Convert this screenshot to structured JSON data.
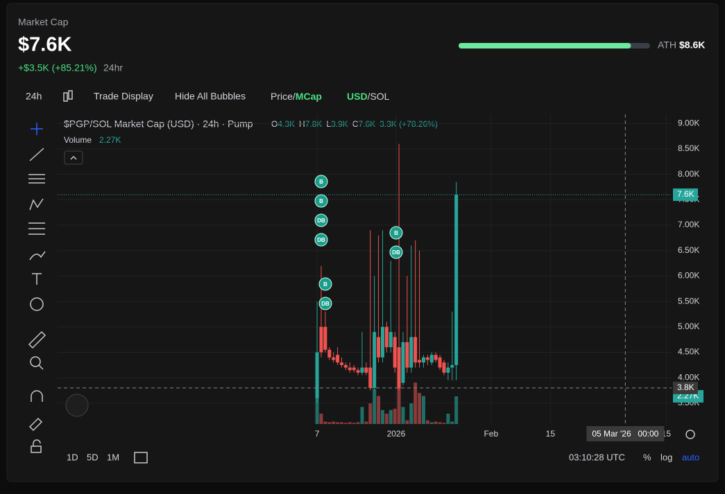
{
  "header": {
    "title": "Market Cap",
    "value": "$7.6K",
    "change": "+$3.5K (+85.21%)",
    "period": "24hr",
    "ath_label": "ATH",
    "ath_value": "$8.6K",
    "ath_progress": 90
  },
  "toolbar": {
    "interval": "24h",
    "trade_display": "Trade Display",
    "hide_bubbles": "Hide All Bubbles",
    "price": "Price/",
    "mcap": "MCap",
    "usd": "USD",
    "sol": "/SOL"
  },
  "legend": {
    "symbol": "$PGP/SOL Market Cap (USD) · 24h · Pump",
    "o_label": "O",
    "o": "4.3K",
    "h_label": "H",
    "h": "7.8K",
    "l_label": "L",
    "l": "3.9K",
    "c_label": "C",
    "c": "7.6K",
    "change": "3.3K (+78.26%)",
    "volume_label": "Volume",
    "volume": "2.27K"
  },
  "chart": {
    "type": "candlestick",
    "open": [
      3.6,
      5.0,
      5.0,
      4.55,
      4.4,
      4.45,
      4.3,
      4.25,
      4.2,
      4.2,
      4.15,
      4.1,
      4.2,
      4.2,
      3.8,
      4.8,
      4.4,
      5.0,
      4.6,
      4.8,
      4.6,
      3.9,
      4.7,
      4.2,
      4.8,
      4.35,
      4.3,
      4.4,
      4.3,
      4.45,
      4.4,
      4.3,
      4.1,
      4.2,
      4.25
    ],
    "high": [
      5.5,
      6.2,
      5.3,
      4.6,
      4.5,
      4.6,
      4.4,
      4.3,
      4.3,
      4.25,
      4.2,
      4.9,
      4.3,
      6.9,
      6.0,
      6.8,
      6.9,
      5.1,
      6.3,
      4.9,
      8.6,
      4.9,
      6.0,
      6.6,
      6.7,
      6.5,
      4.45,
      4.45,
      4.5,
      4.5,
      4.45,
      4.35,
      4.3,
      5.3,
      7.85
    ],
    "low": [
      3.5,
      4.4,
      4.5,
      4.35,
      4.3,
      4.25,
      4.2,
      4.15,
      4.1,
      4.1,
      4.05,
      4.05,
      4.05,
      3.75,
      3.75,
      4.3,
      4.3,
      4.5,
      4.5,
      4.1,
      3.75,
      3.85,
      4.1,
      4.1,
      4.2,
      4.2,
      4.2,
      4.25,
      4.25,
      4.3,
      4.15,
      4.05,
      3.95,
      3.95,
      3.95
    ],
    "close": [
      4.5,
      4.5,
      4.55,
      4.4,
      4.35,
      4.3,
      4.25,
      4.2,
      4.15,
      4.15,
      4.1,
      4.2,
      4.1,
      3.8,
      4.9,
      4.4,
      5.0,
      4.6,
      4.9,
      4.2,
      3.8,
      4.7,
      4.2,
      4.8,
      4.3,
      4.3,
      4.4,
      4.35,
      4.45,
      4.35,
      4.2,
      4.1,
      4.2,
      4.25,
      7.6
    ],
    "volume": [
      2.67,
      0.85,
      0.2,
      0.15,
      0.2,
      0.15,
      0.15,
      0.1,
      0.15,
      0.1,
      0.15,
      1.4,
      0.2,
      1.7,
      2.85,
      2.3,
      1.15,
      0.85,
      1.15,
      1.25,
      4.3,
      1.4,
      0.3,
      1.7,
      3.4,
      2.55,
      2.3,
      0.3,
      0.15,
      0.2,
      0.15,
      0.1,
      0.85,
      0.2,
      2.27
    ],
    "xlim": [
      -63.4,
      86.6
    ],
    "ylim": [
      3.09,
      9.18
    ],
    "vlim": [
      0,
      25.4
    ],
    "yticks": [
      {
        "value": 9,
        "label": "9.00K"
      },
      {
        "value": 8.5,
        "label": "8.50K"
      },
      {
        "value": 8,
        "label": "8.00K"
      },
      {
        "value": 7.5,
        "label": "7.50K"
      },
      {
        "value": 7,
        "label": "7.00K"
      },
      {
        "value": 6.5,
        "label": "6.50K"
      },
      {
        "value": 6,
        "label": "6.00K"
      },
      {
        "value": 5.5,
        "label": "5.50K"
      },
      {
        "value": 5,
        "label": "5.00K"
      },
      {
        "value": 4.5,
        "label": "4.50K"
      },
      {
        "value": 4,
        "label": "4.00K"
      },
      {
        "value": 3.5,
        "label": "3.50K"
      }
    ],
    "xticks": [
      {
        "value": 0,
        "label": "7"
      },
      {
        "value": 19.3,
        "label": "2026"
      },
      {
        "value": 42.5,
        "label": "Feb"
      },
      {
        "value": 57,
        "label": "15"
      },
      {
        "value": 85.3,
        "label": "15"
      }
    ],
    "price_tag": "7.6K",
    "volume_tag": "2.27K",
    "crosshair": {
      "y": {
        "value": 3.8,
        "label": "3.8K"
      },
      "x": {
        "value": 75.3,
        "date": "05 Mar '26",
        "time": "00:00"
      }
    },
    "bubbles": [
      "B",
      "B",
      "DB",
      "DB",
      "B",
      "DB",
      "B",
      "DB"
    ]
  },
  "footer": {
    "ranges": [
      "1D",
      "5D",
      "1M"
    ],
    "clock": "03:10:28 UTC",
    "percent": "%",
    "log": "log",
    "auto": "auto"
  }
}
